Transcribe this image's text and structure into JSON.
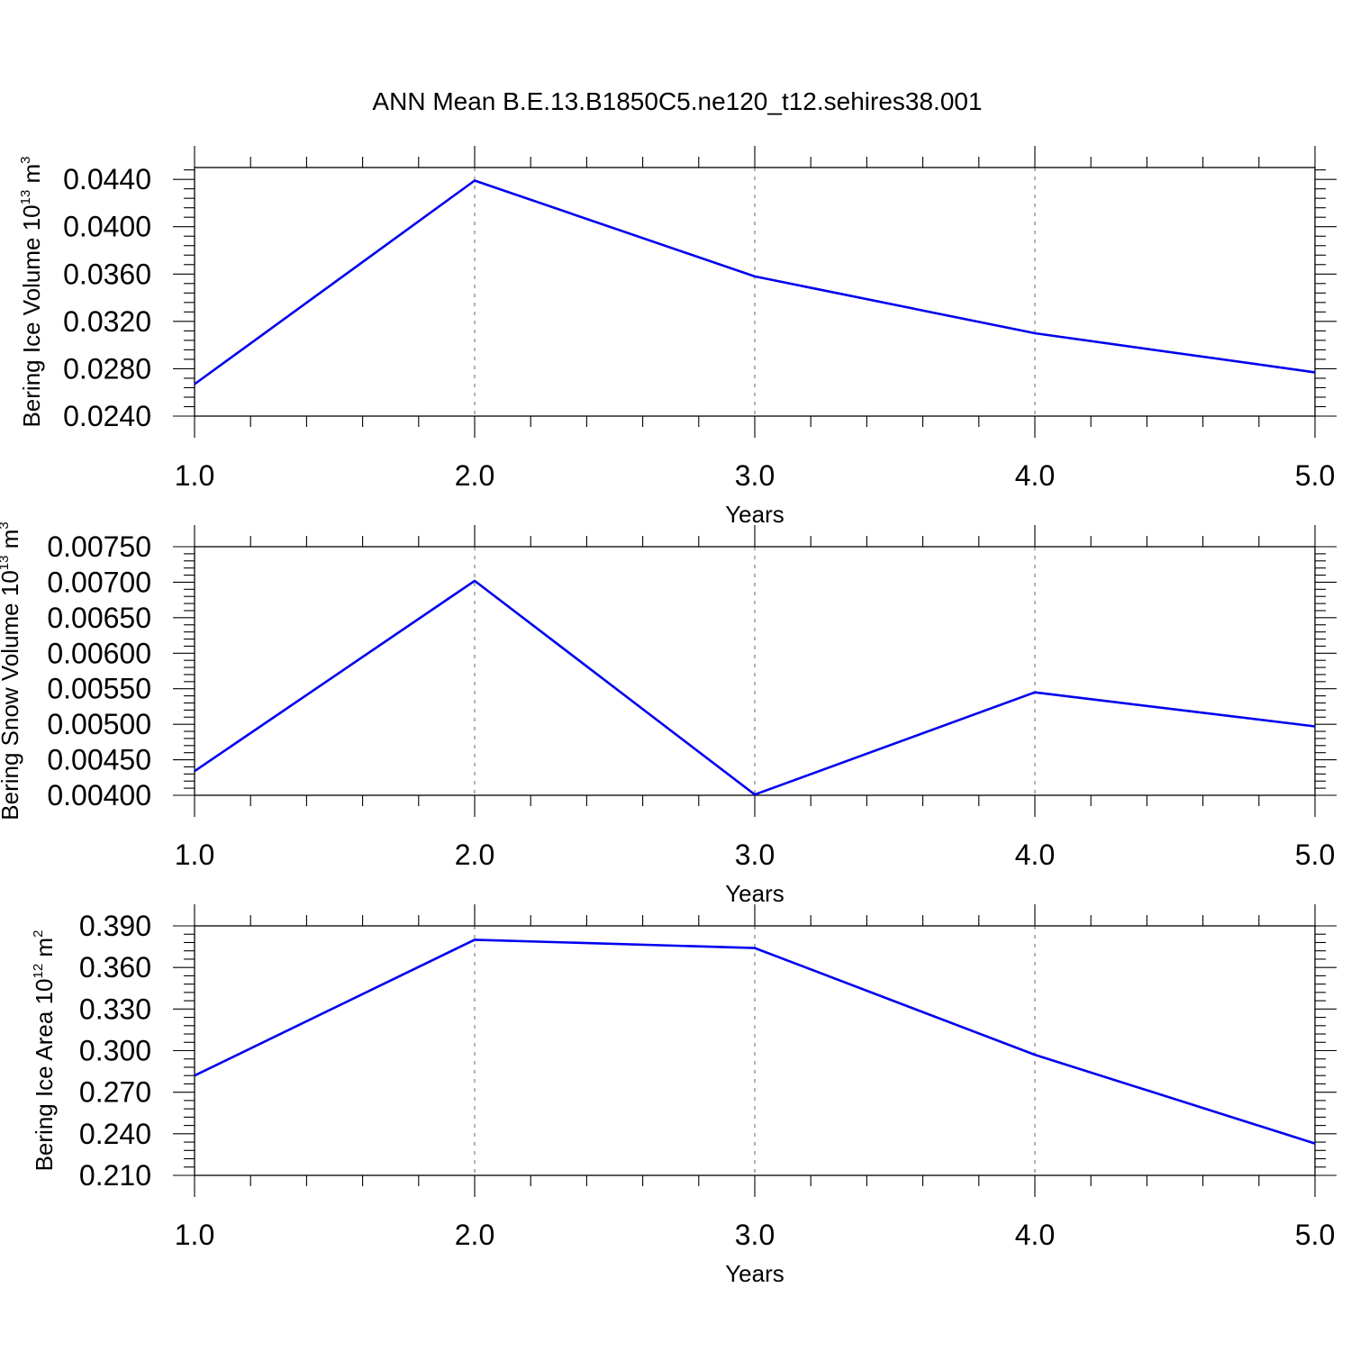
{
  "title": "ANN Mean B.E.13.B1850C5.ne120_t12.sehires38.001",
  "colors": {
    "series": "#0000ee",
    "grid": "#9a9a9a",
    "axis": "#000000"
  },
  "chart_data": [
    {
      "type": "line",
      "title": "",
      "xlabel": "Years",
      "ylabel": {
        "prefix": "Bering Ice Volume 10",
        "exponent": "13",
        "mid": " m",
        "unit_exponent": "3"
      },
      "x": [
        1.0,
        2.0,
        3.0,
        4.0,
        5.0
      ],
      "xlim": [
        1.0,
        5.0
      ],
      "xticks": [
        "1.0",
        "2.0",
        "3.0",
        "4.0",
        "5.0"
      ],
      "ylim": [
        0.024,
        0.045
      ],
      "yticks": [
        "0.0240",
        "0.0280",
        "0.0320",
        "0.0360",
        "0.0400",
        "0.0440"
      ],
      "ytick_values": [
        0.024,
        0.028,
        0.032,
        0.036,
        0.04,
        0.044
      ],
      "series": [
        {
          "values": [
            0.0267,
            0.0439,
            0.0358,
            0.031,
            0.0277
          ]
        }
      ],
      "grid": "vertical dashed at major x ticks"
    },
    {
      "type": "line",
      "title": "",
      "xlabel": "Years",
      "ylabel": {
        "prefix": "Bering Snow Volume 10",
        "exponent": "13",
        "mid": " m",
        "unit_exponent": "3"
      },
      "x": [
        1.0,
        2.0,
        3.0,
        4.0,
        5.0
      ],
      "xlim": [
        1.0,
        5.0
      ],
      "xticks": [
        "1.0",
        "2.0",
        "3.0",
        "4.0",
        "5.0"
      ],
      "ylim": [
        0.004,
        0.0075
      ],
      "yticks": [
        "0.00400",
        "0.00450",
        "0.00500",
        "0.00550",
        "0.00600",
        "0.00650",
        "0.00700",
        "0.00750"
      ],
      "ytick_values": [
        0.004,
        0.0045,
        0.005,
        0.0055,
        0.006,
        0.0065,
        0.007,
        0.0075
      ],
      "series": [
        {
          "values": [
            0.00434,
            0.00702,
            0.00401,
            0.00545,
            0.00497
          ]
        }
      ],
      "grid": "vertical dashed at major x ticks"
    },
    {
      "type": "line",
      "title": "",
      "xlabel": "Years",
      "ylabel": {
        "prefix": "Bering Ice Area 10",
        "exponent": "12",
        "mid": " m",
        "unit_exponent": "2"
      },
      "x": [
        1.0,
        2.0,
        3.0,
        4.0,
        5.0
      ],
      "xlim": [
        1.0,
        5.0
      ],
      "xticks": [
        "1.0",
        "2.0",
        "3.0",
        "4.0",
        "5.0"
      ],
      "ylim": [
        0.21,
        0.39
      ],
      "yticks": [
        "0.210",
        "0.240",
        "0.270",
        "0.300",
        "0.330",
        "0.360",
        "0.390"
      ],
      "ytick_values": [
        0.21,
        0.24,
        0.27,
        0.3,
        0.33,
        0.36,
        0.39
      ],
      "series": [
        {
          "values": [
            0.282,
            0.38,
            0.374,
            0.297,
            0.233
          ]
        }
      ],
      "grid": "vertical dashed at major x ticks"
    }
  ]
}
